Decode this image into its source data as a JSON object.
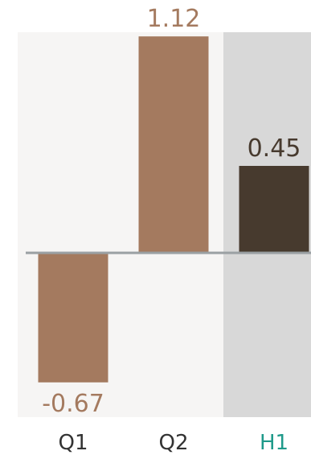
{
  "colors": {
    "background": "#ffffff",
    "plot_area": "#f6f5f4",
    "highlight_band": "#d8d8d8",
    "period_bar": "#a47a5f",
    "total_bar": "#473a2e",
    "zero_line": "#9aa0a3",
    "axis_tick": "#333333",
    "highlight_tick": "#1f9a8a"
  },
  "chart_data": {
    "type": "bar",
    "categories": [
      "Q1",
      "Q2",
      "H1"
    ],
    "values": [
      -0.67,
      1.12,
      0.45
    ],
    "value_labels": [
      "-0.67",
      "1.12",
      "0.45"
    ],
    "highlighted_category": "H1",
    "total_category": "H1",
    "title": "",
    "xlabel": "",
    "ylabel": "",
    "ylim": [
      -0.85,
      1.14
    ],
    "grid": false,
    "legend": "none"
  }
}
